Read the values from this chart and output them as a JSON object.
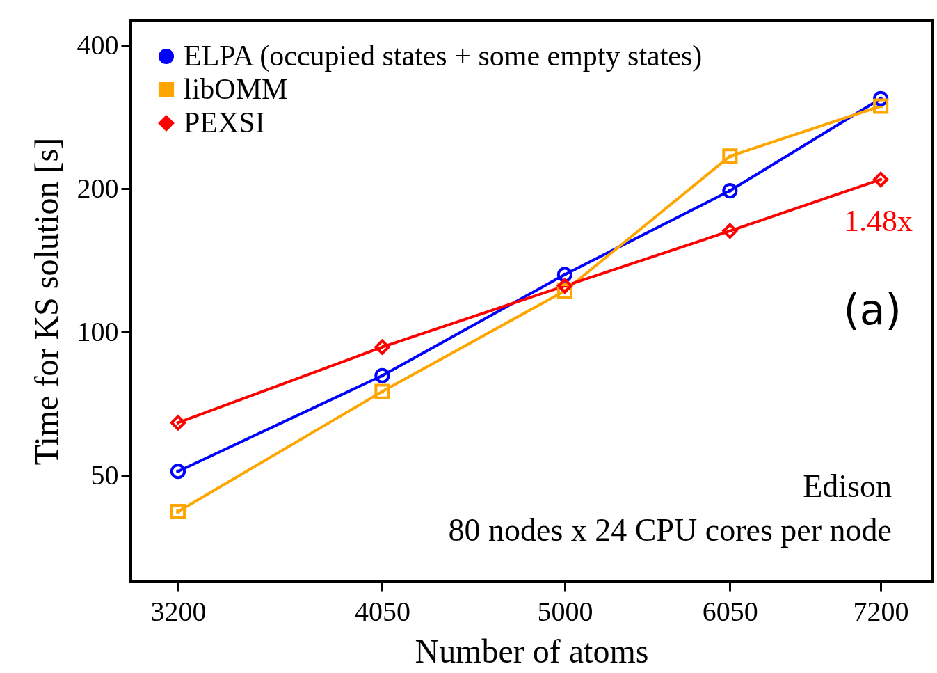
{
  "chart_data": {
    "type": "line",
    "xlabel": "Number of atoms",
    "ylabel": "Time for KS solution [s]",
    "log": "xy",
    "x": [
      3200,
      4050,
      5000,
      6050,
      7200
    ],
    "xlim": [
      3030,
      7640
    ],
    "xticks": [
      3200,
      4050,
      5000,
      6050,
      7200
    ],
    "ylim": [
      30,
      450
    ],
    "yticks": [
      50,
      100,
      200,
      400
    ],
    "grid": false,
    "legend": "top left",
    "line_style": "solid",
    "series": [
      {
        "name": "ELPA (occupied states + some empty states)",
        "color": "#0000ff",
        "marker": "circle",
        "values": [
          51,
          81,
          132,
          198,
          309
        ]
      },
      {
        "name": "libOMM",
        "color": "#ffa500",
        "marker": "square",
        "values": [
          42,
          75,
          122,
          234,
          298
        ]
      },
      {
        "name": "PEXSI",
        "color": "#ff0000",
        "marker": "diamond",
        "values": [
          64.5,
          93,
          125,
          163,
          209
        ]
      }
    ],
    "annotations": [
      "1.48x",
      "(a)",
      "Edison",
      "80 nodes x 24 CPU cores per node"
    ]
  }
}
